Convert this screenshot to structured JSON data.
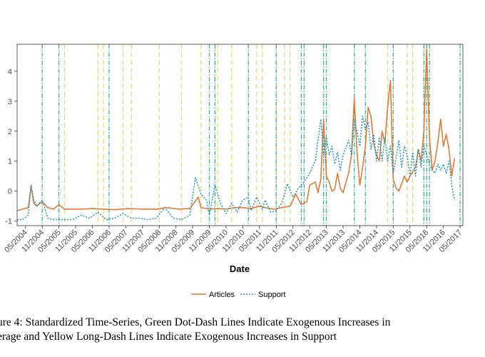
{
  "chart_data": {
    "type": "line",
    "xlabel": "Date",
    "x_tick_labels": [
      "05/2004",
      "11/2004",
      "05/2005",
      "11/2005",
      "05/2006",
      "11/2006",
      "05/2007",
      "11/2007",
      "05/2008",
      "11/2008",
      "05/2009",
      "11/2009",
      "05/2010",
      "11/2010",
      "05/2011",
      "11/2011",
      "05/2012",
      "11/2012",
      "05/2013",
      "11/2013",
      "05/2014",
      "11/2014",
      "05/2015",
      "11/2015",
      "05/2016",
      "11/2016",
      "05/2017"
    ],
    "x_range": [
      "02/2004",
      "06/2017"
    ],
    "y_ticks": [
      -1,
      0,
      1,
      2,
      3,
      4
    ],
    "ylim": [
      -1.15,
      4.9
    ],
    "grid": false,
    "legend_position": "bottom",
    "series": [
      {
        "name": "Articles",
        "color": "#e07b39",
        "style": "solid",
        "points": [
          [
            "2004-02",
            -0.65
          ],
          [
            "2004-04",
            -0.6
          ],
          [
            "2004-06",
            -0.55
          ],
          [
            "2004-07",
            0.15
          ],
          [
            "2004-08",
            -0.4
          ],
          [
            "2004-09",
            -0.5
          ],
          [
            "2004-11",
            -0.35
          ],
          [
            "2005-01",
            -0.55
          ],
          [
            "2005-03",
            -0.6
          ],
          [
            "2005-05",
            -0.45
          ],
          [
            "2005-07",
            -0.6
          ],
          [
            "2005-10",
            -0.6
          ],
          [
            "2006-01",
            -0.6
          ],
          [
            "2006-05",
            -0.58
          ],
          [
            "2006-09",
            -0.6
          ],
          [
            "2007-01",
            -0.62
          ],
          [
            "2007-06",
            -0.58
          ],
          [
            "2007-11",
            -0.6
          ],
          [
            "2008-04",
            -0.6
          ],
          [
            "2008-08",
            -0.55
          ],
          [
            "2008-12",
            -0.6
          ],
          [
            "2009-04",
            -0.58
          ],
          [
            "2009-07",
            -0.2
          ],
          [
            "2009-08",
            -0.55
          ],
          [
            "2009-11",
            -0.6
          ],
          [
            "2010-02",
            -0.58
          ],
          [
            "2010-05",
            -0.6
          ],
          [
            "2010-08",
            -0.55
          ],
          [
            "2010-11",
            -0.55
          ],
          [
            "2011-02",
            -0.58
          ],
          [
            "2011-05",
            -0.5
          ],
          [
            "2011-07",
            -0.55
          ],
          [
            "2011-10",
            -0.6
          ],
          [
            "2012-01",
            -0.55
          ],
          [
            "2012-04",
            -0.5
          ],
          [
            "2012-06",
            -0.1
          ],
          [
            "2012-08",
            -0.45
          ],
          [
            "2012-10",
            -0.35
          ],
          [
            "2012-11",
            0.2
          ],
          [
            "2013-01",
            0.3
          ],
          [
            "2013-02",
            -0.05
          ],
          [
            "2013-03",
            0.4
          ],
          [
            "2013-04",
            2.4
          ],
          [
            "2013-05",
            0.5
          ],
          [
            "2013-06",
            0.3
          ],
          [
            "2013-07",
            0.0
          ],
          [
            "2013-08",
            0.05
          ],
          [
            "2013-09",
            0.6
          ],
          [
            "2013-10",
            0.1
          ],
          [
            "2013-11",
            -0.05
          ],
          [
            "2014-01",
            0.6
          ],
          [
            "2014-02",
            1.2
          ],
          [
            "2014-03",
            3.1
          ],
          [
            "2014-04",
            1.3
          ],
          [
            "2014-05",
            0.2
          ],
          [
            "2014-06",
            0.8
          ],
          [
            "2014-07",
            1.5
          ],
          [
            "2014-08",
            2.8
          ],
          [
            "2014-09",
            2.5
          ],
          [
            "2014-10",
            1.6
          ],
          [
            "2014-11",
            1.2
          ],
          [
            "2014-12",
            1.0
          ],
          [
            "2015-01",
            2.0
          ],
          [
            "2015-02",
            1.6
          ],
          [
            "2015-03",
            2.8
          ],
          [
            "2015-04",
            3.7
          ],
          [
            "2015-05",
            0.4
          ],
          [
            "2015-06",
            0.1
          ],
          [
            "2015-07",
            0.0
          ],
          [
            "2015-09",
            0.5
          ],
          [
            "2015-10",
            0.3
          ],
          [
            "2015-11",
            0.5
          ],
          [
            "2016-01",
            0.8
          ],
          [
            "2016-02",
            1.4
          ],
          [
            "2016-03",
            1.0
          ],
          [
            "2016-04",
            2.0
          ],
          [
            "2016-05",
            4.75
          ],
          [
            "2016-06",
            1.8
          ],
          [
            "2016-07",
            0.7
          ],
          [
            "2016-08",
            1.0
          ],
          [
            "2016-09",
            1.6
          ],
          [
            "2016-10",
            2.4
          ],
          [
            "2016-11",
            1.5
          ],
          [
            "2016-12",
            1.9
          ],
          [
            "2017-01",
            1.4
          ],
          [
            "2017-02",
            0.5
          ],
          [
            "2017-03",
            1.1
          ]
        ]
      },
      {
        "name": "Support",
        "color": "#2a9bc4",
        "style": "dotted",
        "points": [
          [
            "2004-02",
            -0.95
          ],
          [
            "2004-04",
            -0.95
          ],
          [
            "2004-06",
            -0.8
          ],
          [
            "2004-07",
            0.2
          ],
          [
            "2004-08",
            -0.3
          ],
          [
            "2004-09",
            -0.5
          ],
          [
            "2004-11",
            -0.3
          ],
          [
            "2005-01",
            -0.9
          ],
          [
            "2005-03",
            -0.95
          ],
          [
            "2005-05",
            -0.95
          ],
          [
            "2005-07",
            -0.95
          ],
          [
            "2005-10",
            -0.95
          ],
          [
            "2006-01",
            -0.8
          ],
          [
            "2006-04",
            -0.9
          ],
          [
            "2006-07",
            -0.7
          ],
          [
            "2006-10",
            -0.95
          ],
          [
            "2007-01",
            -0.9
          ],
          [
            "2007-04",
            -0.75
          ],
          [
            "2007-07",
            -0.9
          ],
          [
            "2007-10",
            -0.9
          ],
          [
            "2008-01",
            -0.95
          ],
          [
            "2008-04",
            -0.9
          ],
          [
            "2008-07",
            -0.55
          ],
          [
            "2008-10",
            -0.9
          ],
          [
            "2009-01",
            -0.95
          ],
          [
            "2009-04",
            -0.8
          ],
          [
            "2009-06",
            0.45
          ],
          [
            "2009-08",
            -0.1
          ],
          [
            "2009-10",
            -0.3
          ],
          [
            "2009-11",
            -0.8
          ],
          [
            "2010-01",
            0.2
          ],
          [
            "2010-03",
            -0.4
          ],
          [
            "2010-05",
            -0.75
          ],
          [
            "2010-07",
            -0.4
          ],
          [
            "2010-09",
            -0.7
          ],
          [
            "2010-11",
            -0.3
          ],
          [
            "2011-01",
            -0.2
          ],
          [
            "2011-02",
            -0.65
          ],
          [
            "2011-04",
            -0.2
          ],
          [
            "2011-06",
            -0.6
          ],
          [
            "2011-07",
            -0.3
          ],
          [
            "2011-09",
            -0.7
          ],
          [
            "2011-11",
            -0.65
          ],
          [
            "2012-01",
            -0.4
          ],
          [
            "2012-03",
            0.25
          ],
          [
            "2012-05",
            -0.2
          ],
          [
            "2012-07",
            0.1
          ],
          [
            "2012-09",
            0.3
          ],
          [
            "2012-11",
            0.6
          ],
          [
            "2013-01",
            1.0
          ],
          [
            "2013-02",
            1.7
          ],
          [
            "2013-03",
            2.4
          ],
          [
            "2013-04",
            1.2
          ],
          [
            "2013-05",
            1.8
          ],
          [
            "2013-06",
            1.2
          ],
          [
            "2013-07",
            1.5
          ],
          [
            "2013-08",
            0.9
          ],
          [
            "2013-09",
            1.3
          ],
          [
            "2013-10",
            0.7
          ],
          [
            "2013-11",
            1.2
          ],
          [
            "2014-01",
            1.7
          ],
          [
            "2014-02",
            1.2
          ],
          [
            "2014-03",
            2.3
          ],
          [
            "2014-04",
            2.0
          ],
          [
            "2014-05",
            1.5
          ],
          [
            "2014-06",
            2.5
          ],
          [
            "2014-07",
            2.1
          ],
          [
            "2014-08",
            2.3
          ],
          [
            "2014-09",
            1.4
          ],
          [
            "2014-10",
            1.9
          ],
          [
            "2014-11",
            1.0
          ],
          [
            "2014-12",
            1.8
          ],
          [
            "2015-01",
            1.0
          ],
          [
            "2015-02",
            1.8
          ],
          [
            "2015-03",
            1.0
          ],
          [
            "2015-04",
            1.5
          ],
          [
            "2015-05",
            0.6
          ],
          [
            "2015-06",
            1.1
          ],
          [
            "2015-07",
            1.7
          ],
          [
            "2015-08",
            0.8
          ],
          [
            "2015-09",
            1.5
          ],
          [
            "2015-10",
            1.2
          ],
          [
            "2015-11",
            0.5
          ],
          [
            "2015-12",
            1.3
          ],
          [
            "2016-01",
            0.5
          ],
          [
            "2016-02",
            1.4
          ],
          [
            "2016-03",
            0.8
          ],
          [
            "2016-04",
            1.5
          ],
          [
            "2016-05",
            1.2
          ],
          [
            "2016-06",
            0.9
          ],
          [
            "2016-07",
            0.7
          ],
          [
            "2016-08",
            0.6
          ],
          [
            "2016-09",
            0.9
          ],
          [
            "2016-10",
            0.7
          ],
          [
            "2016-11",
            0.9
          ],
          [
            "2016-12",
            0.6
          ],
          [
            "2017-01",
            1.0
          ],
          [
            "2017-02",
            0.2
          ],
          [
            "2017-03",
            -0.3
          ]
        ]
      }
    ],
    "vertical_markers": {
      "green_dot_dash": {
        "color": "#3db58a",
        "dates": [
          "2004-11",
          "2005-05",
          "2006-11",
          "2009-11",
          "2010-01",
          "2011-01",
          "2011-11",
          "2012-08",
          "2012-09",
          "2013-04",
          "2013-05",
          "2014-03",
          "2014-07",
          "2015-05",
          "2016-04",
          "2016-05",
          "2016-06",
          "2017-05"
        ]
      },
      "yellow_long_dash": {
        "color": "#f2d675",
        "dates": [
          "2005-07",
          "2006-07",
          "2006-09",
          "2007-04",
          "2007-07",
          "2008-05",
          "2009-01",
          "2009-08",
          "2010-02",
          "2010-07",
          "2011-04",
          "2011-06",
          "2011-11",
          "2012-02",
          "2012-04",
          "2015-03",
          "2015-10",
          "2015-12"
        ]
      }
    }
  },
  "legend": {
    "articles_label": "Articles",
    "support_label": "Support"
  },
  "caption": {
    "line1": "ure 4: Standardized Time-Series, Green Dot-Dash Lines Indicate Exogenous Increases in",
    "line2": "erage and Yellow Long-Dash Lines Indicate Exogenous Increases in Support"
  }
}
